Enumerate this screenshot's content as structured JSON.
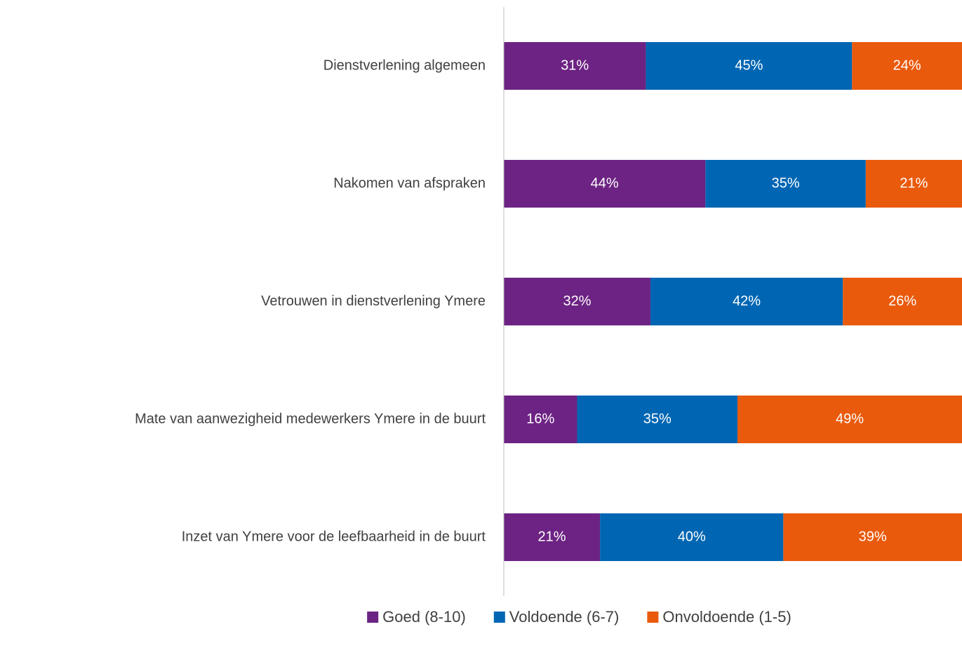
{
  "chart_data": {
    "type": "stacked_bar_horizontal",
    "categories": [
      "Dienstverlening algemeen",
      "Nakomen van afspraken",
      "Vetrouwen in dienstverlening Ymere",
      "Mate van aanwezigheid medewerkers Ymere in de buurt",
      "Inzet van Ymere voor de leefbaarheid in de buurt"
    ],
    "series": [
      {
        "name": "Goed (8-10)",
        "color": "#6c2383",
        "values": [
          31,
          44,
          32,
          16,
          21
        ],
        "value_labels": [
          "31%",
          "44%",
          "32%",
          "16%",
          "21%"
        ]
      },
      {
        "name": "Voldoende (6-7)",
        "color": "#0066b3",
        "values": [
          45,
          35,
          42,
          35,
          40
        ],
        "value_labels": [
          "45%",
          "35%",
          "42%",
          "35%",
          "40%"
        ]
      },
      {
        "name": "Onvoldoende (1-5)",
        "color": "#e95a0c",
        "values": [
          24,
          21,
          26,
          49,
          39
        ],
        "value_labels": [
          "24%",
          "21%",
          "26%",
          "49%",
          "39%"
        ]
      }
    ],
    "legend": "bottom"
  }
}
